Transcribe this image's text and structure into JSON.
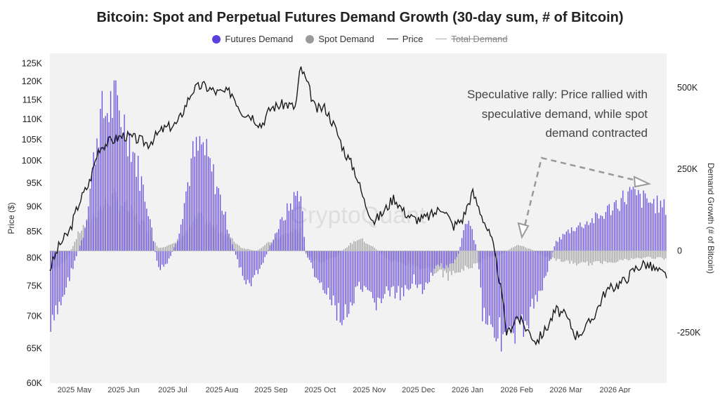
{
  "chart_data": {
    "type": "bar",
    "title": "Bitcoin: Spot and Perpetual Futures Demand Growth (30-day sum, # of Bitcoin)",
    "legend": [
      {
        "name": "Futures Demand",
        "color": "#5b3de0",
        "kind": "dot"
      },
      {
        "name": "Spot Demand",
        "color": "#9a9a9a",
        "kind": "dot"
      },
      {
        "name": "Price",
        "color": "#222222",
        "kind": "line"
      },
      {
        "name": "Total Demand",
        "color": "#aaaaaa",
        "kind": "line-disabled"
      }
    ],
    "ylabel_left": "Price ($)",
    "ylabel_right": "Demand Growth (# of Bitcoin)",
    "left_ticks": [
      "60K",
      "65K",
      "70K",
      "75K",
      "80K",
      "85K",
      "90K",
      "95K",
      "100K",
      "105K",
      "110K",
      "115K",
      "120K",
      "125K"
    ],
    "left_scale": "log",
    "left_ylim": [
      60000,
      128000
    ],
    "right_ticks": [
      {
        "label": "500K",
        "value": 500000
      },
      {
        "label": "250K",
        "value": 250000
      },
      {
        "label": "0",
        "value": 0
      },
      {
        "label": "-250K",
        "value": -250000
      }
    ],
    "right_ylim": [
      -405000,
      605000
    ],
    "x_ticks": [
      "2025 May",
      "2025 Jun",
      "2025 Jul",
      "2025 Aug",
      "2025 Sep",
      "2025 Oct",
      "2025 Nov",
      "2025 Dec",
      "2026 Jan",
      "2026 Feb",
      "2026 Mar",
      "2026 Apr"
    ],
    "x_range_months": [
      0,
      12.55
    ],
    "futures_anchors": [
      [
        0,
        -270
      ],
      [
        0.3,
        -130
      ],
      [
        0.7,
        60
      ],
      [
        1.0,
        420
      ],
      [
        1.3,
        480
      ],
      [
        1.6,
        380
      ],
      [
        2.0,
        140
      ],
      [
        2.2,
        -60
      ],
      [
        2.4,
        -40
      ],
      [
        2.6,
        40
      ],
      [
        2.9,
        300
      ],
      [
        3.1,
        340
      ],
      [
        3.4,
        210
      ],
      [
        3.7,
        30
      ],
      [
        4.0,
        -120
      ],
      [
        4.3,
        -50
      ],
      [
        4.6,
        60
      ],
      [
        4.9,
        150
      ],
      [
        5.1,
        200
      ],
      [
        5.2,
        0
      ],
      [
        5.4,
        -80
      ],
      [
        5.7,
        -160
      ],
      [
        6.0,
        -220
      ],
      [
        6.3,
        -120
      ],
      [
        6.6,
        -170
      ],
      [
        6.9,
        -130
      ],
      [
        7.2,
        -150
      ],
      [
        7.4,
        -80
      ],
      [
        7.6,
        -140
      ],
      [
        7.9,
        -40
      ],
      [
        8.1,
        -60
      ],
      [
        8.3,
        -20
      ],
      [
        8.5,
        110
      ],
      [
        8.7,
        0
      ],
      [
        8.8,
        -190
      ],
      [
        9.1,
        -260
      ],
      [
        9.4,
        -290
      ],
      [
        9.7,
        -230
      ],
      [
        10.0,
        -120
      ],
      [
        10.3,
        30
      ],
      [
        10.6,
        70
      ],
      [
        10.9,
        90
      ],
      [
        11.2,
        110
      ],
      [
        11.5,
        150
      ],
      [
        11.8,
        185
      ],
      [
        12.0,
        170
      ],
      [
        12.5,
        140
      ]
    ],
    "spot_anchors": [
      [
        0,
        -60
      ],
      [
        0.3,
        -40
      ],
      [
        0.6,
        60
      ],
      [
        1.0,
        130
      ],
      [
        1.3,
        170
      ],
      [
        1.6,
        130
      ],
      [
        2.0,
        70
      ],
      [
        2.2,
        10
      ],
      [
        2.5,
        20
      ],
      [
        2.8,
        60
      ],
      [
        3.0,
        110
      ],
      [
        3.3,
        80
      ],
      [
        3.6,
        50
      ],
      [
        3.9,
        10
      ],
      [
        4.2,
        0
      ],
      [
        4.5,
        30
      ],
      [
        4.9,
        60
      ],
      [
        5.1,
        70
      ],
      [
        5.2,
        -10
      ],
      [
        5.5,
        -40
      ],
      [
        5.8,
        -20
      ],
      [
        6.1,
        20
      ],
      [
        6.3,
        40
      ],
      [
        6.6,
        10
      ],
      [
        6.9,
        -30
      ],
      [
        7.2,
        -40
      ],
      [
        7.5,
        -50
      ],
      [
        7.8,
        -60
      ],
      [
        8.1,
        -80
      ],
      [
        8.4,
        -60
      ],
      [
        8.7,
        -40
      ],
      [
        8.9,
        -20
      ],
      [
        9.2,
        -10
      ],
      [
        9.5,
        20
      ],
      [
        9.8,
        5
      ],
      [
        10.1,
        -20
      ],
      [
        10.4,
        -30
      ],
      [
        10.7,
        -40
      ],
      [
        11.0,
        -40
      ],
      [
        11.3,
        -35
      ],
      [
        11.6,
        -30
      ],
      [
        11.9,
        -25
      ],
      [
        12.2,
        -20
      ],
      [
        12.5,
        -25
      ]
    ],
    "price_anchors": [
      [
        0,
        78000
      ],
      [
        0.2,
        82500
      ],
      [
        0.4,
        85000
      ],
      [
        0.6,
        91000
      ],
      [
        0.8,
        95000
      ],
      [
        1.0,
        103000
      ],
      [
        1.2,
        104500
      ],
      [
        1.5,
        106000
      ],
      [
        1.8,
        105000
      ],
      [
        2.0,
        104000
      ],
      [
        2.3,
        107500
      ],
      [
        2.6,
        109000
      ],
      [
        2.9,
        117500
      ],
      [
        3.1,
        119000
      ],
      [
        3.4,
        117000
      ],
      [
        3.7,
        117000
      ],
      [
        3.9,
        112000
      ],
      [
        4.1,
        111000
      ],
      [
        4.3,
        108500
      ],
      [
        4.5,
        113000
      ],
      [
        4.8,
        114000
      ],
      [
        5.0,
        113000
      ],
      [
        5.1,
        124000
      ],
      [
        5.25,
        119000
      ],
      [
        5.4,
        112500
      ],
      [
        5.6,
        113000
      ],
      [
        5.8,
        108000
      ],
      [
        6.0,
        102000
      ],
      [
        6.2,
        98000
      ],
      [
        6.4,
        91000
      ],
      [
        6.6,
        87000
      ],
      [
        6.8,
        89000
      ],
      [
        7.0,
        92000
      ],
      [
        7.2,
        89000
      ],
      [
        7.4,
        87500
      ],
      [
        7.6,
        87500
      ],
      [
        7.8,
        88500
      ],
      [
        8.0,
        90000
      ],
      [
        8.2,
        86000
      ],
      [
        8.4,
        87500
      ],
      [
        8.6,
        93000
      ],
      [
        8.8,
        88000
      ],
      [
        9.0,
        83000
      ],
      [
        9.15,
        76000
      ],
      [
        9.3,
        67000
      ],
      [
        9.5,
        70000
      ],
      [
        9.7,
        68000
      ],
      [
        9.9,
        66000
      ],
      [
        10.1,
        68000
      ],
      [
        10.3,
        71000
      ],
      [
        10.5,
        70000
      ],
      [
        10.7,
        67000
      ],
      [
        10.9,
        68000
      ],
      [
        11.1,
        70500
      ],
      [
        11.3,
        74000
      ],
      [
        11.5,
        75000
      ],
      [
        11.7,
        76000
      ],
      [
        11.9,
        78000
      ],
      [
        12.1,
        79000
      ],
      [
        12.3,
        78000
      ],
      [
        12.5,
        77000
      ]
    ]
  },
  "annotation": {
    "lines": [
      "Speculative rally: Price rallied with",
      "speculative demand, while spot",
      "demand contracted"
    ]
  },
  "watermark": "CryptoQuant"
}
